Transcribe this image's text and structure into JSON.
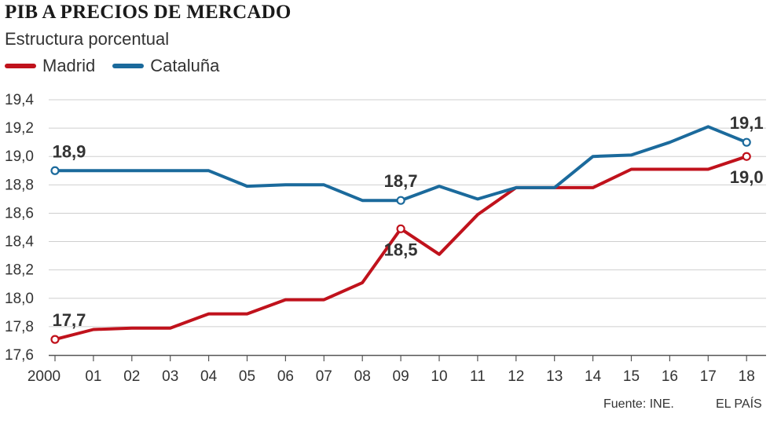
{
  "header": {
    "title": "PIB A PRECIOS DE MERCADO",
    "subtitle": "Estructura porcentual"
  },
  "footer": {
    "source": "Fuente: INE.",
    "publisher": "EL PAÍS"
  },
  "chart_data": {
    "type": "line",
    "title": "PIB A PRECIOS DE MERCADO",
    "subtitle": "Estructura porcentual",
    "x_tick_labels": [
      "2000",
      "01",
      "02",
      "03",
      "04",
      "05",
      "06",
      "07",
      "08",
      "09",
      "10",
      "11",
      "12",
      "13",
      "14",
      "15",
      "16",
      "17",
      "18"
    ],
    "y_tick_labels": [
      "17,6",
      "17,8",
      "18,0",
      "18,2",
      "18,4",
      "18,6",
      "18,8",
      "19,0",
      "19,2",
      "19,4"
    ],
    "ylim": [
      17.6,
      19.4
    ],
    "grid": true,
    "legend_position": "top-left",
    "series": [
      {
        "name": "Madrid",
        "color": "#c0121c",
        "values": [
          17.71,
          17.78,
          17.79,
          17.79,
          17.89,
          17.89,
          17.99,
          17.99,
          18.11,
          18.49,
          18.31,
          18.59,
          18.78,
          18.78,
          18.78,
          18.91,
          18.91,
          18.91,
          19.0
        ]
      },
      {
        "name": "Cataluña",
        "color": "#1b6a9c",
        "values": [
          18.9,
          18.9,
          18.9,
          18.9,
          18.9,
          18.79,
          18.8,
          18.8,
          18.69,
          18.69,
          18.79,
          18.7,
          18.78,
          18.78,
          19.0,
          19.01,
          19.1,
          19.21,
          19.1
        ]
      }
    ],
    "annotations": [
      {
        "series": 0,
        "index": 0,
        "label": "17,7",
        "position": "above"
      },
      {
        "series": 1,
        "index": 0,
        "label": "18,9",
        "position": "above"
      },
      {
        "series": 1,
        "index": 9,
        "label": "18,7",
        "position": "above"
      },
      {
        "series": 0,
        "index": 9,
        "label": "18,5",
        "position": "below"
      },
      {
        "series": 1,
        "index": 18,
        "label": "19,1",
        "position": "above"
      },
      {
        "series": 0,
        "index": 18,
        "label": "19,0",
        "position": "below"
      }
    ]
  }
}
